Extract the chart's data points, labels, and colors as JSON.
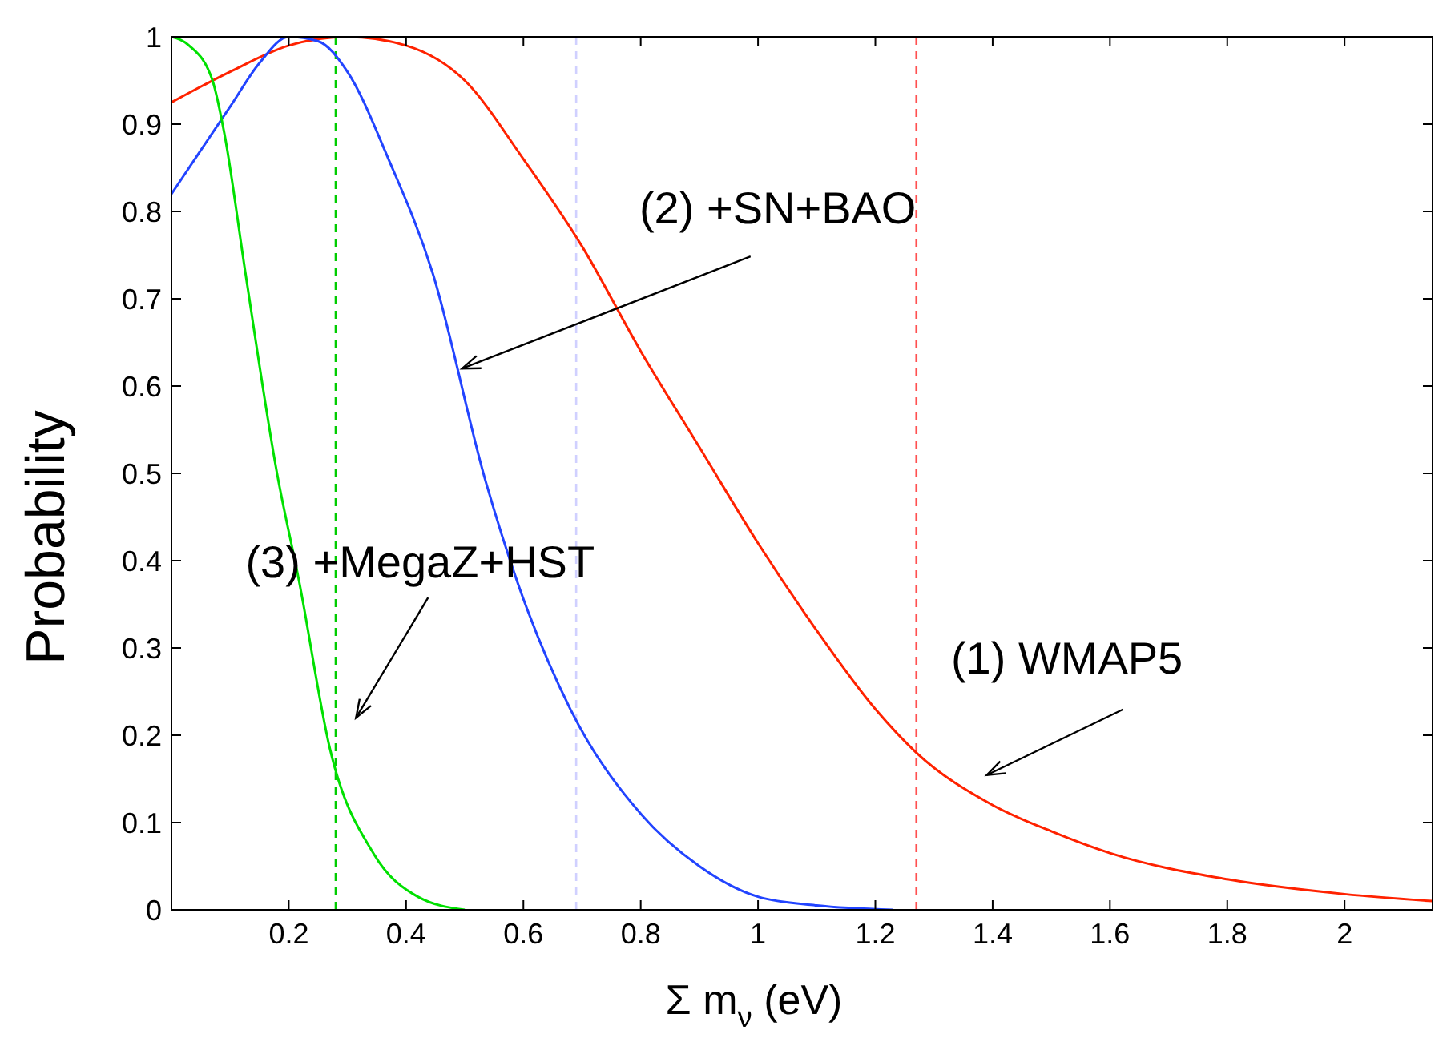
{
  "chart_data": {
    "type": "line",
    "xlabel": "Σ m$_{ν}$  (eV)",
    "ylabel": "Probability",
    "xlim": [
      0,
      2.15
    ],
    "xticks": [
      0.2,
      0.4,
      0.6,
      0.8,
      1,
      1.2,
      1.4,
      1.6,
      1.8,
      2
    ],
    "ylim": [
      0,
      1
    ],
    "yticks": [
      0,
      0.1,
      0.2,
      0.3,
      0.4,
      0.5,
      0.6,
      0.7,
      0.8,
      0.9,
      1
    ],
    "grid": false,
    "marker": "none",
    "line_style": "solid",
    "series": [
      {
        "color": "#ff2200",
        "x": [
          0,
          0.1,
          0.2,
          0.3,
          0.4,
          0.5,
          0.6,
          0.7,
          0.8,
          0.9,
          1.0,
          1.1,
          1.2,
          1.27,
          1.4,
          1.5,
          1.6,
          1.8,
          2.0,
          2.15
        ],
        "values": [
          0.925,
          0.96,
          0.99,
          1.0,
          0.99,
          0.95,
          0.86,
          0.76,
          0.64,
          0.53,
          0.42,
          0.32,
          0.23,
          0.18,
          0.12,
          0.09,
          0.065,
          0.035,
          0.018,
          0.01
        ]
      },
      {
        "color": "#2244ff",
        "x": [
          0,
          0.05,
          0.1,
          0.15,
          0.2,
          0.25,
          0.3,
          0.37,
          0.445,
          0.536,
          0.59,
          0.68,
          0.8,
          0.9,
          1.0,
          1.1,
          1.23
        ],
        "values": [
          0.82,
          0.87,
          0.92,
          0.97,
          1.0,
          0.995,
          0.96,
          0.86,
          0.73,
          0.49,
          0.375,
          0.23,
          0.11,
          0.05,
          0.015,
          0.005,
          0
        ]
      },
      {
        "color": "#00e000",
        "x": [
          0,
          0.03,
          0.07,
          0.09,
          0.126,
          0.18,
          0.218,
          0.27,
          0.345,
          0.42,
          0.5
        ],
        "values": [
          1.0,
          0.99,
          0.95,
          0.89,
          0.73,
          0.5,
          0.375,
          0.185,
          0.064,
          0.015,
          0
        ]
      }
    ],
    "ref_lines": [
      {
        "axis": "x",
        "value": 0.28,
        "color": "#00cc00",
        "line_style": "dashed"
      },
      {
        "axis": "x",
        "value": 0.69,
        "color": "#d0d0ff",
        "line_style": "dashed"
      },
      {
        "axis": "x",
        "value": 1.27,
        "color": "#ff5050",
        "line_style": "dashed"
      }
    ],
    "annotations": [
      {
        "text": "(2) +SN+BAO",
        "x": 0.49,
        "y": 0.62
      },
      {
        "text": "(3) +MegaZ+HST",
        "x": 0.26,
        "y": 0.22
      },
      {
        "text": "(1) WMAP5",
        "x": 1.39,
        "y": 0.125
      }
    ]
  }
}
